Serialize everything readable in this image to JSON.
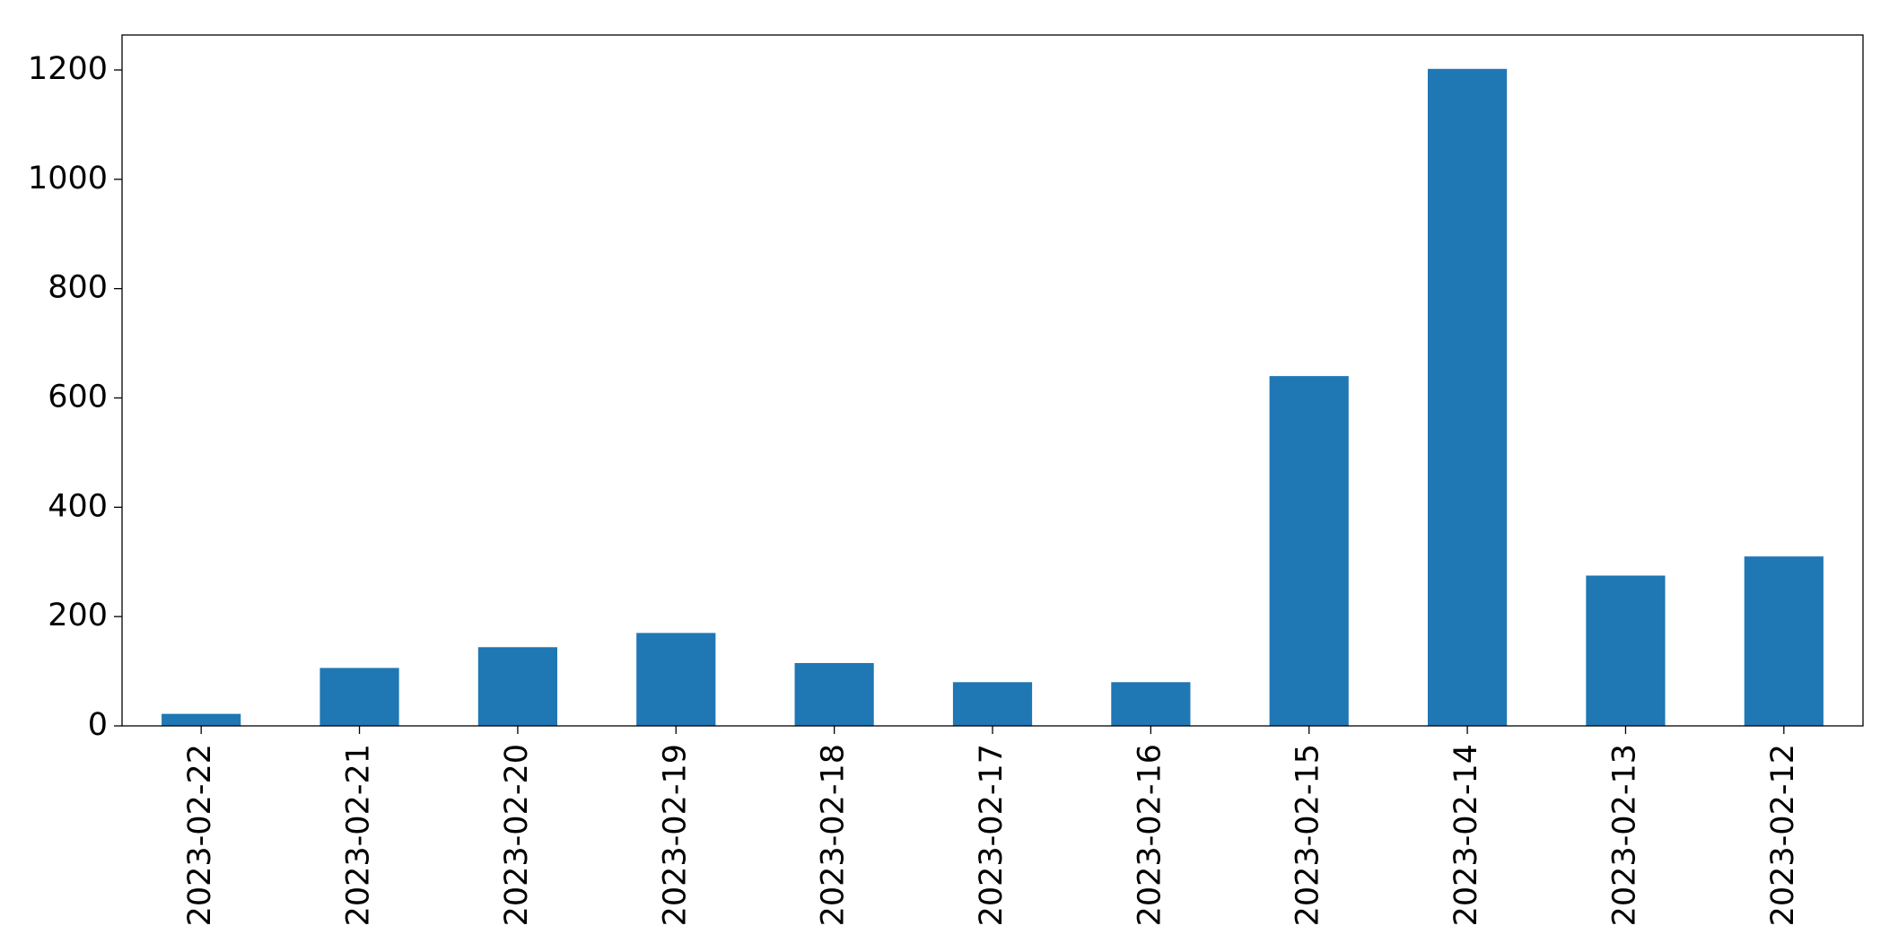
{
  "chart_data": {
    "type": "bar",
    "categories": [
      "2023-02-22",
      "2023-02-21",
      "2023-02-20",
      "2023-02-19",
      "2023-02-18",
      "2023-02-17",
      "2023-02-16",
      "2023-02-15",
      "2023-02-14",
      "2023-02-13",
      "2023-02-12"
    ],
    "values": [
      22,
      106,
      144,
      170,
      115,
      80,
      80,
      640,
      1202,
      275,
      310
    ],
    "color": "#1f77b4",
    "ylim": [
      0,
      1264
    ],
    "yticks": [
      0,
      200,
      400,
      600,
      800,
      1000,
      1200
    ],
    "grid": false
  }
}
